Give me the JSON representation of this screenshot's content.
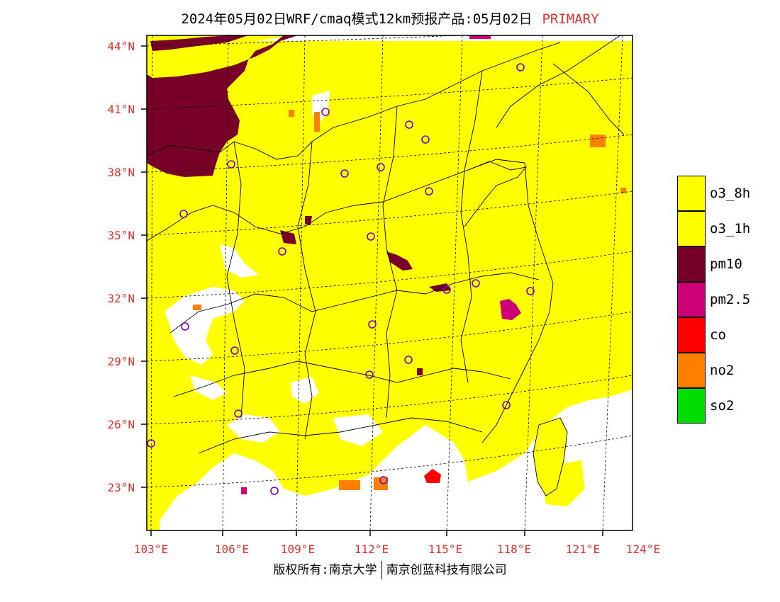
{
  "title": {
    "text": "2024年05月02日WRF/cmaq模式12km预报产品:05月02日",
    "tag": "PRIMARY"
  },
  "axes": {
    "lat_labels": [
      "44°N",
      "41°N",
      "38°N",
      "35°N",
      "32°N",
      "29°N",
      "26°N",
      "23°N"
    ],
    "lon_labels": [
      "103°E",
      "106°E",
      "109°E",
      "112°E",
      "115°E",
      "118°E",
      "121°E",
      "124°E"
    ]
  },
  "legend": {
    "items": [
      {
        "label": "o3_8h",
        "color": "#ffff00"
      },
      {
        "label": "o3_1h",
        "color": "#ffff00"
      },
      {
        "label": "pm10",
        "color": "#780028"
      },
      {
        "label": "pm2.5",
        "color": "#cc0077"
      },
      {
        "label": "co",
        "color": "#ff0000"
      },
      {
        "label": "no2",
        "color": "#ff8000"
      },
      {
        "label": "so2",
        "color": "#00dd00"
      }
    ]
  },
  "footer": {
    "left": "版权所有:南京大学",
    "right": "南京创蓝科技有限公司"
  }
}
